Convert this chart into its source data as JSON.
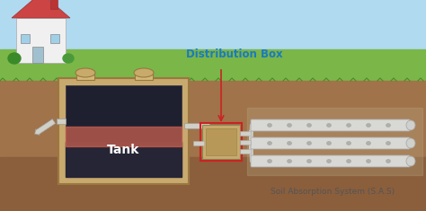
{
  "bg_sky_color": "#b0daf0",
  "bg_grass_color": "#7ab648",
  "bg_soil_color": "#a0734a",
  "bg_dark_soil": "#8B5E3C",
  "title": "Distribution Box",
  "title_color": "#1a7abf",
  "subtitle": "Soil Absorption System (S.A.S)",
  "subtitle_color": "#555555",
  "tank_label": "Tank",
  "tank_label_color": "#ffffff",
  "tank_outer": "#c8a96e",
  "tank_inner_dark": "#2a2a3a",
  "tank_liquid_color": "#d87060",
  "pipe_color": "#d0cfc8",
  "pipe_outline": "#999999",
  "dist_box_color": "#c8a96e",
  "dist_box_outline": "#cc2222",
  "arrow_color": "#cc2222",
  "house_wall": "#f0f0f0",
  "house_roof": "#cc4444",
  "house_chimney": "#bb3333",
  "grass_color": "#5a9e32",
  "leach_pipe_color": "#cccccc",
  "leach_pipe_dots": "#999999"
}
